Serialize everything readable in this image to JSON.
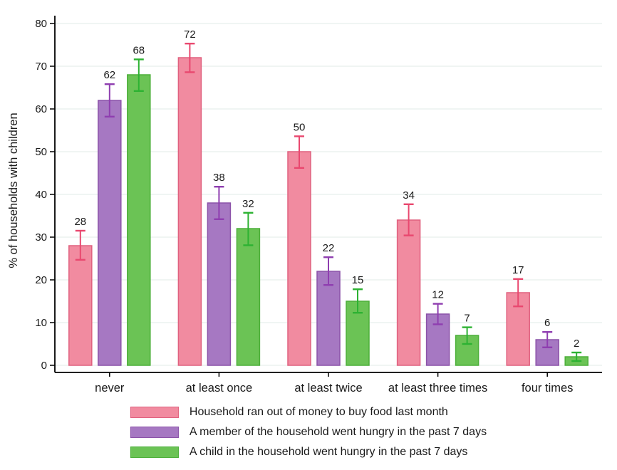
{
  "chart_data": {
    "type": "bar",
    "title": "",
    "xlabel": "",
    "ylabel": "% of households with children",
    "ylim": [
      0,
      80
    ],
    "yticks": [
      0,
      10,
      20,
      30,
      40,
      50,
      60,
      70,
      80
    ],
    "grid": true,
    "legend_position": "bottom",
    "categories": [
      "never",
      "at least once",
      "at least twice",
      "at least three times",
      "four times"
    ],
    "series": [
      {
        "name": "Household ran out of money to buy food last month",
        "values": [
          28,
          72,
          50,
          34,
          17
        ],
        "ci_low": [
          24.7,
          68.6,
          46.2,
          30.4,
          13.8
        ],
        "ci_high": [
          31.5,
          75.3,
          53.6,
          37.7,
          20.2
        ],
        "fill": "#F18BA0",
        "stroke": "#E0617F",
        "error_color": "#E9486F"
      },
      {
        "name": "A member of the household went hungry in the past 7 days",
        "values": [
          62,
          38,
          22,
          12,
          6
        ],
        "ci_low": [
          58.2,
          34.2,
          18.8,
          9.6,
          4.2
        ],
        "ci_high": [
          65.8,
          41.8,
          25.3,
          14.4,
          7.8
        ],
        "fill": "#A678C2",
        "stroke": "#8C53A9",
        "error_color": "#8F3EB0"
      },
      {
        "name": "A child in the household went hungry in the past 7 days",
        "values": [
          68,
          32,
          15,
          7,
          2
        ],
        "ci_low": [
          64.2,
          28.1,
          12.3,
          5.0,
          1.0
        ],
        "ci_high": [
          71.6,
          35.7,
          17.8,
          8.9,
          3.0
        ],
        "fill": "#6BC355",
        "stroke": "#4DAF3A",
        "error_color": "#2DB232"
      }
    ],
    "colors": {
      "grid": "#E8EFEC",
      "axis": "#000000",
      "text": "#1A1A1A",
      "background": "#FFFFFF"
    }
  }
}
